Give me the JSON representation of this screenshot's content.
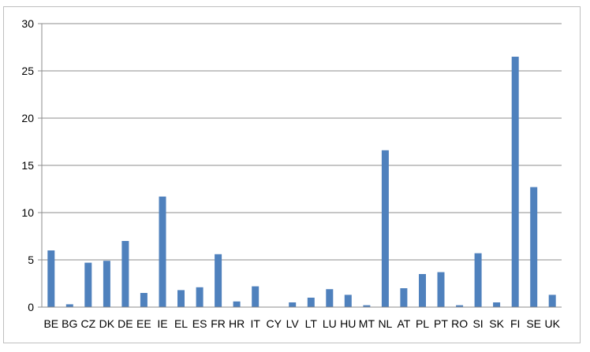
{
  "chart_data": {
    "type": "bar",
    "title": "",
    "xlabel": "",
    "ylabel": "",
    "ylim": [
      0,
      30
    ],
    "yticks": [
      0,
      5,
      10,
      15,
      20,
      25,
      30
    ],
    "grid": true,
    "legend": "none",
    "bar_color": "#4f81bd",
    "grid_color": "#8c8c8c",
    "categories": [
      "BE",
      "BG",
      "CZ",
      "DK",
      "DE",
      "EE",
      "IE",
      "EL",
      "ES",
      "FR",
      "HR",
      "IT",
      "CY",
      "LV",
      "LT",
      "LU",
      "HU",
      "MT",
      "NL",
      "AT",
      "PL",
      "PT",
      "RO",
      "SI",
      "SK",
      "FI",
      "SE",
      "UK"
    ],
    "values": [
      6.0,
      0.3,
      4.7,
      4.9,
      7.0,
      1.5,
      11.7,
      1.8,
      2.1,
      5.6,
      0.6,
      2.2,
      0.0,
      0.5,
      1.0,
      1.9,
      1.3,
      0.2,
      16.6,
      2.0,
      3.5,
      3.7,
      0.2,
      5.7,
      0.5,
      26.5,
      12.7,
      1.3
    ]
  }
}
